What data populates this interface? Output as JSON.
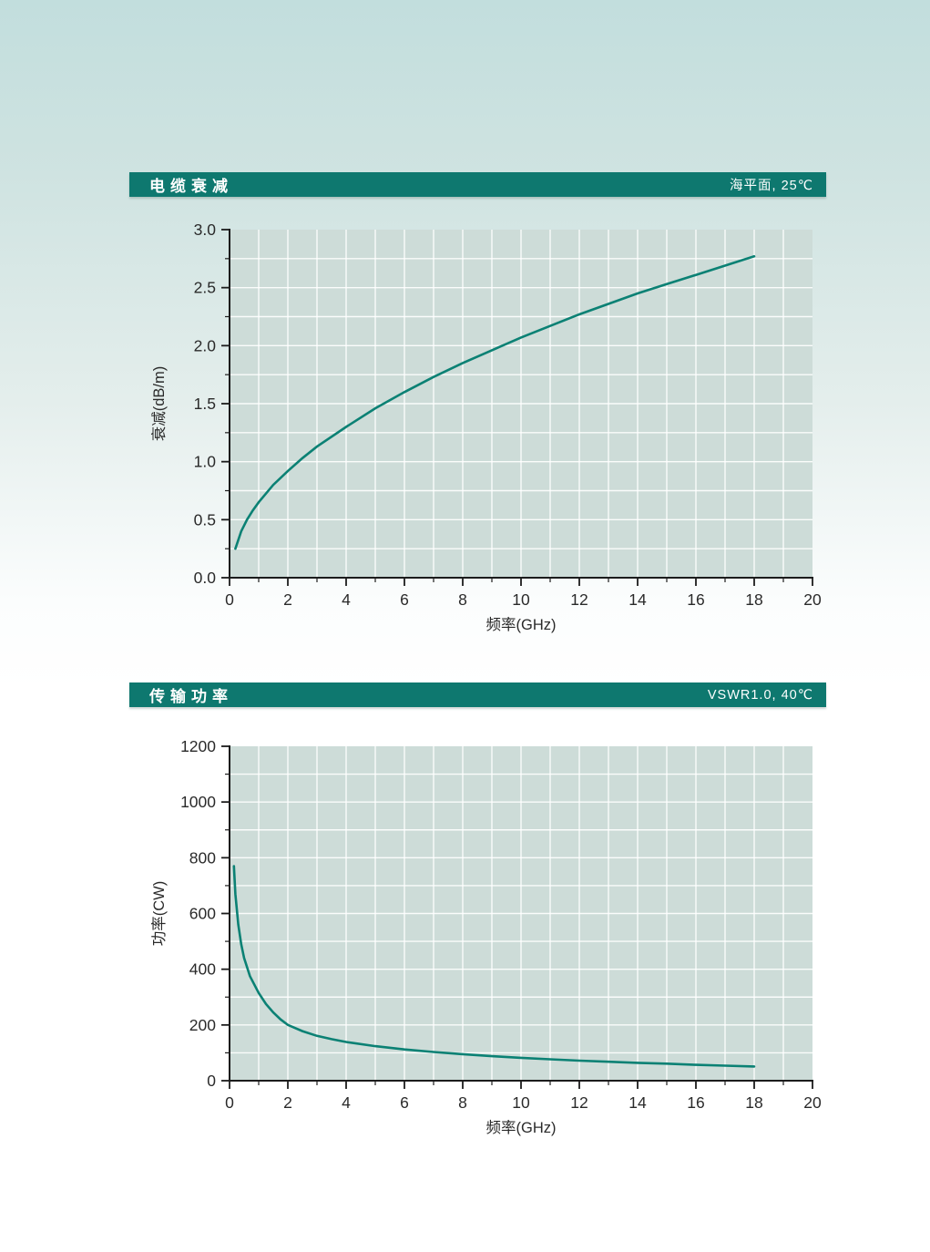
{
  "colors": {
    "header_bar": "#0e786f",
    "curve": "#0b8174",
    "plot_background": "#cddcd8",
    "gridline": "#ffffff",
    "axis": "#1c1c1c",
    "tick_label": "#2a2a2a",
    "page_background_top": "#c2dedd",
    "page_background_bottom": "#ffffff"
  },
  "chart_data": [
    {
      "type": "line",
      "title": "电缆衰减",
      "condition": "海平面, 25℃",
      "xlabel": "频率(GHz)",
      "ylabel": "衰减(dB/m)",
      "xlim": [
        0,
        20
      ],
      "ylim": [
        0,
        3.0
      ],
      "x_tick_major": 2,
      "x_tick_minor": 1,
      "y_tick_major": 0.5,
      "y_tick_minor": 0.25,
      "y_tick_decimals": 1,
      "grid": true,
      "legend": "none",
      "series": [
        {
          "name": "衰减",
          "x": [
            0.2,
            0.4,
            0.6,
            0.8,
            1,
            1.5,
            2,
            2.5,
            3,
            4,
            5,
            6,
            7,
            8,
            9,
            10,
            11,
            12,
            13,
            14,
            15,
            16,
            17,
            18
          ],
          "y": [
            0.25,
            0.4,
            0.5,
            0.58,
            0.65,
            0.8,
            0.92,
            1.03,
            1.13,
            1.3,
            1.46,
            1.6,
            1.73,
            1.85,
            1.96,
            2.07,
            2.17,
            2.27,
            2.36,
            2.45,
            2.53,
            2.61,
            2.69,
            2.77
          ]
        }
      ]
    },
    {
      "type": "line",
      "title": "传输功率",
      "condition": "VSWR1.0, 40℃",
      "xlabel": "频率(GHz)",
      "ylabel": "功率(CW)",
      "xlim": [
        0,
        20
      ],
      "ylim": [
        0,
        1200
      ],
      "x_tick_major": 2,
      "x_tick_minor": 1,
      "y_tick_major": 200,
      "y_tick_minor": 100,
      "y_tick_decimals": 0,
      "grid": true,
      "legend": "none",
      "series": [
        {
          "name": "功率",
          "x": [
            0.15,
            0.2,
            0.3,
            0.4,
            0.5,
            0.7,
            1,
            1.25,
            1.5,
            1.75,
            2,
            2.5,
            3,
            3.5,
            4,
            5,
            6,
            7,
            8,
            9,
            10,
            11,
            12,
            13,
            14,
            15,
            16,
            17,
            18
          ],
          "y": [
            770,
            670,
            560,
            490,
            440,
            375,
            315,
            275,
            245,
            220,
            200,
            178,
            161,
            149,
            139,
            124,
            112,
            103,
            95,
            88,
            82,
            77,
            72,
            68,
            64,
            61,
            57,
            54,
            51
          ]
        }
      ]
    }
  ]
}
